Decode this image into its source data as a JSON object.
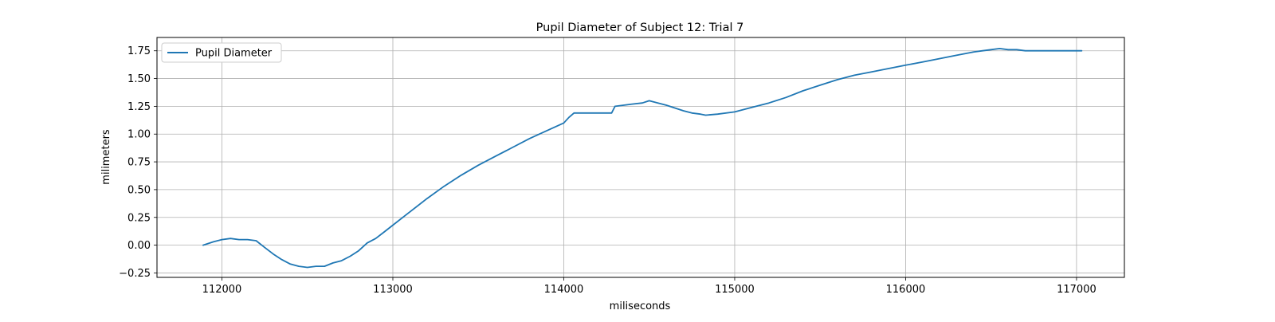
{
  "chart_data": {
    "type": "line",
    "title": "Pupil Diameter of Subject 12: Trial 7",
    "xlabel": "miliseconds",
    "ylabel": "milimeters",
    "xlim": [
      111620,
      117280
    ],
    "ylim": [
      -0.29,
      1.87
    ],
    "xticks": [
      112000,
      113000,
      114000,
      115000,
      116000,
      117000
    ],
    "yticks": [
      -0.25,
      0.0,
      0.25,
      0.5,
      0.75,
      1.0,
      1.25,
      1.5,
      1.75
    ],
    "grid": true,
    "legend_position": "upper-left",
    "series": [
      {
        "name": "Pupil Diameter",
        "color": "#1f77b4",
        "x": [
          111890,
          111950,
          112000,
          112050,
          112100,
          112150,
          112200,
          112250,
          112300,
          112350,
          112400,
          112450,
          112500,
          112550,
          112600,
          112650,
          112700,
          112750,
          112800,
          112850,
          112900,
          112950,
          113000,
          113100,
          113200,
          113300,
          113400,
          113500,
          113600,
          113700,
          113800,
          113900,
          114000,
          114030,
          114060,
          114100,
          114200,
          114280,
          114300,
          114400,
          114460,
          114500,
          114600,
          114700,
          114750,
          114800,
          114830,
          114900,
          115000,
          115100,
          115200,
          115300,
          115400,
          115500,
          115600,
          115700,
          115800,
          115900,
          116000,
          116100,
          116200,
          116300,
          116400,
          116450,
          116500,
          116550,
          116600,
          116650,
          116700,
          116750,
          116800,
          116900,
          117000,
          117030
        ],
        "y": [
          0.0,
          0.03,
          0.05,
          0.06,
          0.05,
          0.05,
          0.04,
          -0.02,
          -0.08,
          -0.13,
          -0.17,
          -0.19,
          -0.2,
          -0.19,
          -0.19,
          -0.16,
          -0.14,
          -0.1,
          -0.05,
          0.02,
          0.06,
          0.12,
          0.18,
          0.3,
          0.42,
          0.53,
          0.63,
          0.72,
          0.8,
          0.88,
          0.96,
          1.03,
          1.1,
          1.15,
          1.19,
          1.19,
          1.19,
          1.19,
          1.25,
          1.27,
          1.28,
          1.3,
          1.26,
          1.21,
          1.19,
          1.18,
          1.17,
          1.18,
          1.2,
          1.24,
          1.28,
          1.33,
          1.39,
          1.44,
          1.49,
          1.53,
          1.56,
          1.59,
          1.62,
          1.65,
          1.68,
          1.71,
          1.74,
          1.75,
          1.76,
          1.77,
          1.76,
          1.76,
          1.75,
          1.75,
          1.75,
          1.75,
          1.75,
          1.75
        ]
      }
    ]
  }
}
